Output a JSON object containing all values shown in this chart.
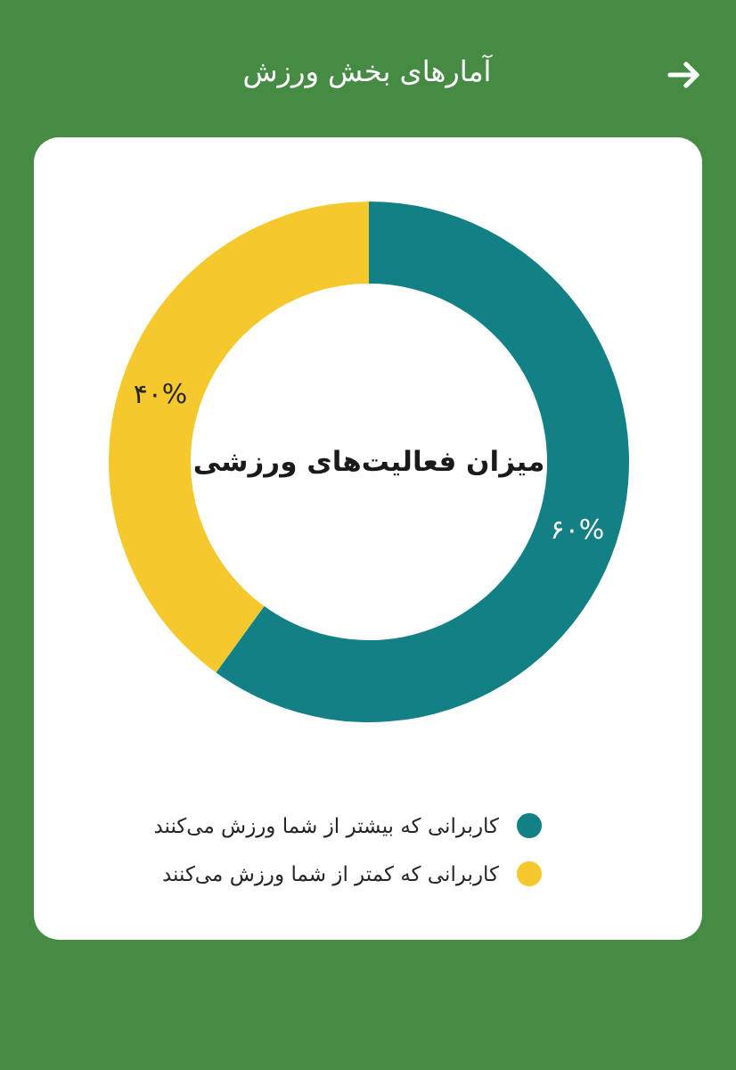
{
  "chart_data": {
    "type": "donut",
    "title": "آمارهای بخش ورزش",
    "subtitle": "میزان فعالیت‌های ورزشی",
    "categories": [
      "کاربرانی که بیشتر از شما ورزش می‌کنند",
      "کاربرانی که کمتر از شما ورزش می‌کنند"
    ],
    "values": [
      60,
      40
    ],
    "colors": [
      "#138085",
      "#f5c92e"
    ],
    "value_labels": [
      "۶۰%",
      "۴۰%"
    ],
    "legend": "bottom"
  }
}
